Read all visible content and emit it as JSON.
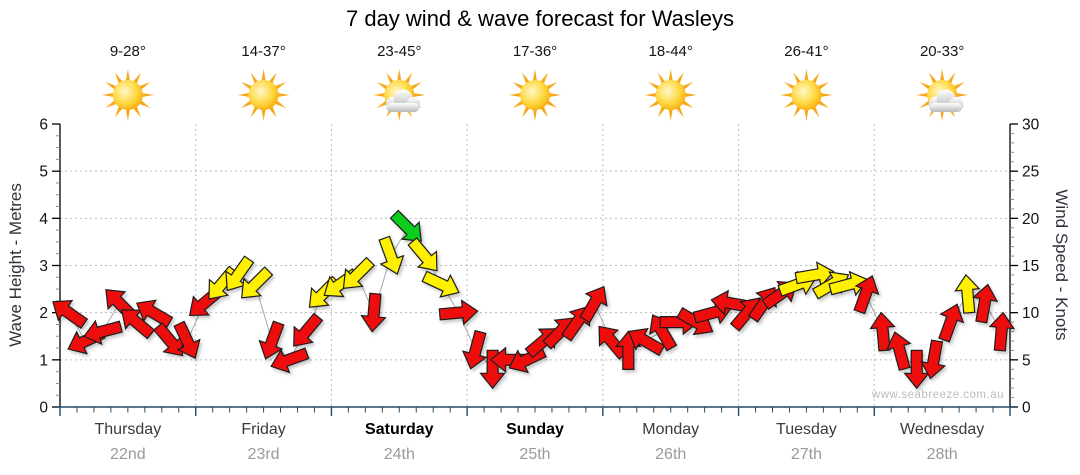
{
  "page": {
    "title": "7 day wind & wave forecast for Wasleys",
    "watermark": "www.seabreeze.com.au"
  },
  "style": {
    "axis_color": "#000000",
    "bottom_axis_color": "#1E4B6E",
    "grid_color": "#bcbcbc",
    "minor_tick_color": "#8a8a8a",
    "line_color": "#a8a8a8",
    "arrow_stroke": "#1b1b1b"
  },
  "chart_data": {
    "type": "scatter",
    "subtype": "wind-direction-arrow-forecast",
    "title": "7 day wind & wave forecast for Wasleys",
    "grid": true,
    "y_left": {
      "label": "Wave Height - Metres",
      "min": 0,
      "max": 6,
      "ticks": [
        0,
        1,
        2,
        3,
        4,
        5,
        6
      ]
    },
    "y_right": {
      "label": "Wind Speed - Knots",
      "min": 0,
      "max": 30,
      "ticks": [
        0,
        5,
        10,
        15,
        20,
        25,
        30
      ]
    },
    "arrow_colors": {
      "red": "#EE1111",
      "yellow": "#FFF000",
      "green": "#09CC1C"
    },
    "wind_format": [
      "knots",
      "direction_deg_screen_cw_from_up",
      "color"
    ],
    "days": [
      {
        "name": "Thursday",
        "date": "22nd",
        "temp": "9-28°",
        "icon": "sunny",
        "weekend": false,
        "winds": [
          [
            10,
            305,
            "red"
          ],
          [
            7,
            245,
            "red"
          ],
          [
            8,
            255,
            "red"
          ],
          [
            11,
            315,
            "red"
          ],
          [
            9,
            310,
            "red"
          ],
          [
            10,
            300,
            "red"
          ],
          [
            7,
            140,
            "red"
          ],
          [
            7,
            155,
            "red"
          ]
        ]
      },
      {
        "name": "Friday",
        "date": "23rd",
        "temp": "14-37°",
        "icon": "sunny",
        "weekend": false,
        "winds": [
          [
            11,
            230,
            "red"
          ],
          [
            13,
            220,
            "yellow"
          ],
          [
            14,
            215,
            "yellow"
          ],
          [
            13,
            225,
            "yellow"
          ],
          [
            7,
            200,
            "red"
          ],
          [
            5,
            250,
            "red"
          ],
          [
            8,
            220,
            "red"
          ],
          [
            12,
            225,
            "yellow"
          ]
        ]
      },
      {
        "name": "Saturday",
        "date": "24th",
        "temp": "23-45°",
        "icon": "partly-cloudy",
        "weekend": true,
        "winds": [
          [
            13,
            235,
            "yellow"
          ],
          [
            14,
            225,
            "yellow"
          ],
          [
            10,
            185,
            "red"
          ],
          [
            16,
            160,
            "yellow"
          ],
          [
            19,
            135,
            "green"
          ],
          [
            16,
            140,
            "yellow"
          ],
          [
            13,
            115,
            "yellow"
          ],
          [
            10,
            85,
            "red"
          ]
        ]
      },
      {
        "name": "Sunday",
        "date": "25th",
        "temp": "17-36°",
        "icon": "sunny",
        "weekend": true,
        "winds": [
          [
            6,
            195,
            "red"
          ],
          [
            4,
            180,
            "red"
          ],
          [
            5,
            270,
            "red"
          ],
          [
            5,
            245,
            "red"
          ],
          [
            7,
            50,
            "red"
          ],
          [
            8,
            45,
            "red"
          ],
          [
            9,
            35,
            "red"
          ],
          [
            11,
            30,
            "red"
          ]
        ]
      },
      {
        "name": "Monday",
        "date": "26th",
        "temp": "18-44°",
        "icon": "sunny",
        "weekend": false,
        "winds": [
          [
            7,
            320,
            "red"
          ],
          [
            6,
            0,
            "red"
          ],
          [
            7,
            300,
            "red"
          ],
          [
            8,
            330,
            "red"
          ],
          [
            9,
            90,
            "red"
          ],
          [
            9,
            120,
            "red"
          ],
          [
            10,
            75,
            "red"
          ],
          [
            11,
            280,
            "red"
          ]
        ]
      },
      {
        "name": "Tuesday",
        "date": "27th",
        "temp": "26-41°",
        "icon": "sunny",
        "weekend": false,
        "winds": [
          [
            10,
            40,
            "red"
          ],
          [
            11,
            35,
            "red"
          ],
          [
            12,
            55,
            "red"
          ],
          [
            13,
            70,
            "yellow"
          ],
          [
            14,
            80,
            "yellow"
          ],
          [
            13,
            60,
            "yellow"
          ],
          [
            13,
            75,
            "yellow"
          ],
          [
            12,
            20,
            "red"
          ]
        ]
      },
      {
        "name": "Wednesday",
        "date": "28th",
        "temp": "20-33°",
        "icon": "partly-cloudy",
        "weekend": false,
        "winds": [
          [
            8,
            355,
            "red"
          ],
          [
            6,
            345,
            "red"
          ],
          [
            4,
            180,
            "red"
          ],
          [
            5,
            190,
            "red"
          ],
          [
            9,
            20,
            "red"
          ],
          [
            12,
            355,
            "yellow"
          ],
          [
            11,
            10,
            "red"
          ],
          [
            8,
            5,
            "red"
          ]
        ]
      }
    ]
  }
}
